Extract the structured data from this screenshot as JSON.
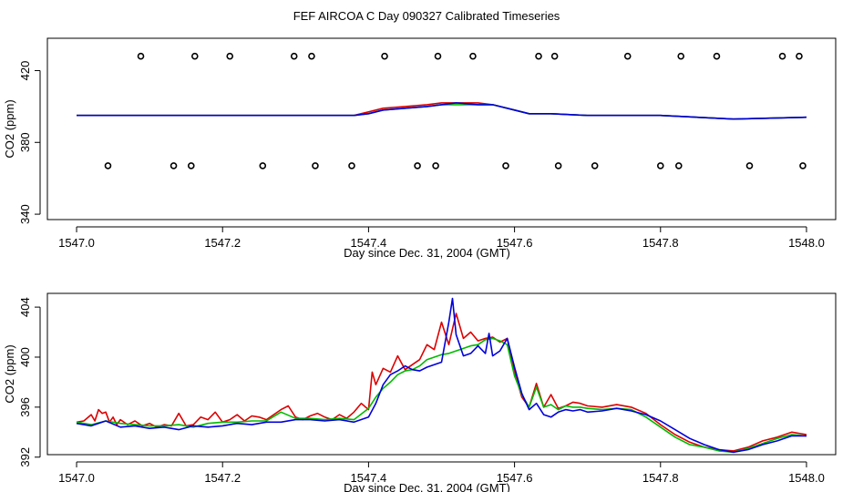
{
  "title": "FEF AIRCOA C  Day 090327  Calibrated Timeseries",
  "colors": {
    "red": "#dd0000",
    "green": "#00bb00",
    "blue": "#0000dd",
    "axis": "#000000"
  },
  "chart_data": [
    {
      "type": "line",
      "panel": "top",
      "xlabel": "Day since Dec. 31, 2004 (GMT)",
      "ylabel": "CO2 (ppm)",
      "xlim": [
        1546.96,
        1548.04
      ],
      "ylim": [
        337,
        438
      ],
      "xticks": [
        1547.0,
        1547.2,
        1547.4,
        1547.6,
        1547.8,
        1548.0
      ],
      "xtick_labels": [
        "1547.0",
        "1547.2",
        "1547.4",
        "1547.6",
        "1547.8",
        "1548.0"
      ],
      "yticks": [
        340,
        380,
        420
      ],
      "ytick_labels": [
        "340",
        "380",
        "420"
      ],
      "markers_high_y": 428,
      "markers_high_x": [
        1547.088,
        1547.162,
        1547.21,
        1547.298,
        1547.322,
        1547.422,
        1547.495,
        1547.543,
        1547.633,
        1547.655,
        1547.755,
        1547.828,
        1547.877,
        1547.967,
        1547.99
      ],
      "markers_low_y": 367,
      "markers_low_x": [
        1547.043,
        1547.133,
        1547.157,
        1547.255,
        1547.327,
        1547.377,
        1547.467,
        1547.492,
        1547.588,
        1547.66,
        1547.71,
        1547.8,
        1547.825,
        1547.922,
        1547.995
      ],
      "series": [
        {
          "name": "red",
          "color": "#dd0000",
          "x": [
            1547.0,
            1547.1,
            1547.2,
            1547.3,
            1547.35,
            1547.38,
            1547.4,
            1547.42,
            1547.45,
            1547.48,
            1547.5,
            1547.52,
            1547.55,
            1547.57,
            1547.6,
            1547.62,
            1547.65,
            1547.7,
            1547.8,
            1547.9,
            1548.0
          ],
          "y": [
            395,
            395,
            395,
            395,
            395,
            395,
            397,
            399,
            400,
            401,
            402,
            402,
            402,
            401,
            398,
            396,
            396,
            395,
            395,
            393,
            394
          ]
        },
        {
          "name": "green",
          "color": "#00bb00",
          "x": [
            1547.0,
            1547.1,
            1547.2,
            1547.3,
            1547.35,
            1547.38,
            1547.4,
            1547.42,
            1547.45,
            1547.48,
            1547.5,
            1547.52,
            1547.55,
            1547.57,
            1547.6,
            1547.62,
            1547.65,
            1547.7,
            1547.8,
            1547.9,
            1548.0
          ],
          "y": [
            395,
            395,
            395,
            395,
            395,
            395,
            396,
            398,
            399,
            400,
            401,
            401,
            401,
            401,
            398,
            396,
            396,
            395,
            395,
            393,
            394
          ]
        },
        {
          "name": "blue",
          "color": "#0000dd",
          "x": [
            1547.0,
            1547.1,
            1547.2,
            1547.3,
            1547.35,
            1547.38,
            1547.4,
            1547.42,
            1547.45,
            1547.48,
            1547.5,
            1547.52,
            1547.55,
            1547.57,
            1547.6,
            1547.62,
            1547.65,
            1547.7,
            1547.8,
            1547.9,
            1548.0
          ],
          "y": [
            395,
            395,
            395,
            395,
            395,
            395,
            396,
            398,
            399,
            400,
            401,
            402,
            401,
            401,
            398,
            396,
            396,
            395,
            395,
            393,
            394
          ]
        }
      ]
    },
    {
      "type": "line",
      "panel": "bottom",
      "xlabel": "Day since Dec. 31, 2004 (GMT)",
      "ylabel": "CO2 (ppm)",
      "xlim": [
        1546.96,
        1548.04
      ],
      "ylim": [
        392.2,
        405.1
      ],
      "xticks": [
        1547.0,
        1547.2,
        1547.4,
        1547.6,
        1547.8,
        1548.0
      ],
      "xtick_labels": [
        "1547.0",
        "1547.2",
        "1547.4",
        "1547.6",
        "1547.8",
        "1548.0"
      ],
      "yticks": [
        392,
        396,
        400,
        404
      ],
      "ytick_labels": [
        "392",
        "396",
        "400",
        "404"
      ],
      "series": [
        {
          "name": "red",
          "color": "#dd0000",
          "x": [
            1547.0,
            1547.01,
            1547.02,
            1547.025,
            1547.03,
            1547.035,
            1547.04,
            1547.045,
            1547.05,
            1547.055,
            1547.06,
            1547.07,
            1547.08,
            1547.09,
            1547.1,
            1547.11,
            1547.12,
            1547.13,
            1547.14,
            1547.15,
            1547.16,
            1547.17,
            1547.18,
            1547.19,
            1547.2,
            1547.21,
            1547.22,
            1547.23,
            1547.24,
            1547.25,
            1547.26,
            1547.27,
            1547.28,
            1547.29,
            1547.3,
            1547.31,
            1547.32,
            1547.33,
            1547.34,
            1547.35,
            1547.36,
            1547.37,
            1547.38,
            1547.39,
            1547.4,
            1547.405,
            1547.41,
            1547.42,
            1547.43,
            1547.44,
            1547.45,
            1547.46,
            1547.47,
            1547.48,
            1547.49,
            1547.5,
            1547.51,
            1547.52,
            1547.53,
            1547.54,
            1547.55,
            1547.56,
            1547.57,
            1547.58,
            1547.59,
            1547.6,
            1547.61,
            1547.62,
            1547.63,
            1547.64,
            1547.65,
            1547.66,
            1547.67,
            1547.68,
            1547.69,
            1547.7,
            1547.72,
            1547.74,
            1547.76,
            1547.78,
            1547.8,
            1547.82,
            1547.84,
            1547.86,
            1547.88,
            1547.9,
            1547.92,
            1547.94,
            1547.96,
            1547.98,
            1548.0
          ],
          "y": [
            394.8,
            394.9,
            395.4,
            394.9,
            395.8,
            395.5,
            395.6,
            394.8,
            395.2,
            394.6,
            395.0,
            394.6,
            394.9,
            394.5,
            394.7,
            394.4,
            394.6,
            394.5,
            395.5,
            394.5,
            394.6,
            395.2,
            395.0,
            395.6,
            394.8,
            395.0,
            395.4,
            394.9,
            395.3,
            395.2,
            395.0,
            395.4,
            395.8,
            396.1,
            395.2,
            395.0,
            395.3,
            395.5,
            395.2,
            395.0,
            395.4,
            395.1,
            395.6,
            396.3,
            395.8,
            398.8,
            397.8,
            399.1,
            398.8,
            400.1,
            399.0,
            399.4,
            399.8,
            401.0,
            400.6,
            402.8,
            401.0,
            403.5,
            401.5,
            402.0,
            401.3,
            401.5,
            401.6,
            401.2,
            401.5,
            398.8,
            396.8,
            396.0,
            397.9,
            396.0,
            397.0,
            395.9,
            396.1,
            396.4,
            396.3,
            396.1,
            396.0,
            396.2,
            396.0,
            395.5,
            394.6,
            393.8,
            393.2,
            392.8,
            392.6,
            392.5,
            392.8,
            393.3,
            393.6,
            394.0,
            393.8
          ]
        },
        {
          "name": "green",
          "color": "#00bb00",
          "x": [
            1547.0,
            1547.02,
            1547.04,
            1547.06,
            1547.08,
            1547.1,
            1547.12,
            1547.14,
            1547.16,
            1547.18,
            1547.2,
            1547.22,
            1547.24,
            1547.26,
            1547.28,
            1547.3,
            1547.32,
            1547.34,
            1547.36,
            1547.38,
            1547.4,
            1547.41,
            1547.42,
            1547.43,
            1547.44,
            1547.45,
            1547.46,
            1547.47,
            1547.48,
            1547.49,
            1547.5,
            1547.51,
            1547.52,
            1547.53,
            1547.54,
            1547.55,
            1547.56,
            1547.57,
            1547.58,
            1547.59,
            1547.6,
            1547.61,
            1547.62,
            1547.63,
            1547.64,
            1547.65,
            1547.66,
            1547.67,
            1547.68,
            1547.69,
            1547.7,
            1547.72,
            1547.74,
            1547.76,
            1547.78,
            1547.8,
            1547.82,
            1547.84,
            1547.86,
            1547.88,
            1547.9,
            1547.92,
            1547.94,
            1547.96,
            1547.98,
            1548.0
          ],
          "y": [
            394.8,
            394.6,
            394.9,
            394.7,
            394.6,
            394.5,
            394.5,
            394.6,
            394.4,
            394.7,
            394.8,
            394.8,
            394.9,
            394.9,
            395.6,
            395.1,
            395.1,
            395.0,
            395.1,
            395.0,
            395.9,
            396.8,
            397.5,
            398.0,
            398.6,
            398.9,
            399.0,
            399.3,
            399.8,
            400.0,
            400.2,
            400.3,
            400.5,
            400.7,
            400.9,
            401.0,
            401.4,
            401.5,
            401.3,
            401.0,
            398.5,
            397.0,
            396.0,
            397.6,
            396.0,
            396.2,
            395.8,
            396.1,
            396.0,
            396.0,
            395.9,
            395.8,
            395.9,
            395.8,
            395.2,
            394.4,
            393.6,
            393.0,
            392.8,
            392.5,
            392.4,
            392.7,
            393.1,
            393.5,
            393.8,
            393.7
          ]
        },
        {
          "name": "blue",
          "color": "#0000dd",
          "x": [
            1547.0,
            1547.02,
            1547.04,
            1547.06,
            1547.08,
            1547.1,
            1547.12,
            1547.14,
            1547.16,
            1547.18,
            1547.2,
            1547.22,
            1547.24,
            1547.26,
            1547.28,
            1547.3,
            1547.32,
            1547.34,
            1547.36,
            1547.38,
            1547.4,
            1547.41,
            1547.42,
            1547.43,
            1547.44,
            1547.45,
            1547.46,
            1547.47,
            1547.48,
            1547.49,
            1547.5,
            1547.505,
            1547.51,
            1547.515,
            1547.52,
            1547.53,
            1547.54,
            1547.55,
            1547.56,
            1547.565,
            1547.57,
            1547.58,
            1547.59,
            1547.6,
            1547.61,
            1547.62,
            1547.63,
            1547.64,
            1547.65,
            1547.66,
            1547.67,
            1547.68,
            1547.69,
            1547.7,
            1547.72,
            1547.74,
            1547.76,
            1547.78,
            1547.8,
            1547.82,
            1547.84,
            1547.86,
            1547.88,
            1547.9,
            1547.92,
            1547.94,
            1547.96,
            1547.98,
            1548.0
          ],
          "y": [
            394.7,
            394.5,
            394.9,
            394.4,
            394.5,
            394.3,
            394.4,
            394.2,
            394.5,
            394.4,
            394.5,
            394.7,
            394.6,
            394.8,
            394.8,
            395.0,
            395.0,
            394.9,
            395.0,
            394.8,
            395.2,
            396.3,
            397.8,
            398.6,
            398.9,
            399.3,
            399.0,
            398.9,
            399.2,
            399.4,
            399.6,
            401.2,
            402.8,
            404.7,
            401.8,
            400.1,
            400.3,
            400.9,
            400.3,
            401.9,
            400.1,
            400.5,
            401.5,
            399.2,
            397.1,
            395.8,
            396.3,
            395.4,
            395.2,
            395.6,
            395.8,
            395.7,
            395.8,
            395.6,
            395.7,
            395.9,
            395.7,
            395.4,
            394.9,
            394.2,
            393.5,
            393.0,
            392.6,
            392.4,
            392.6,
            393.0,
            393.3,
            393.7,
            393.7
          ]
        }
      ]
    }
  ]
}
